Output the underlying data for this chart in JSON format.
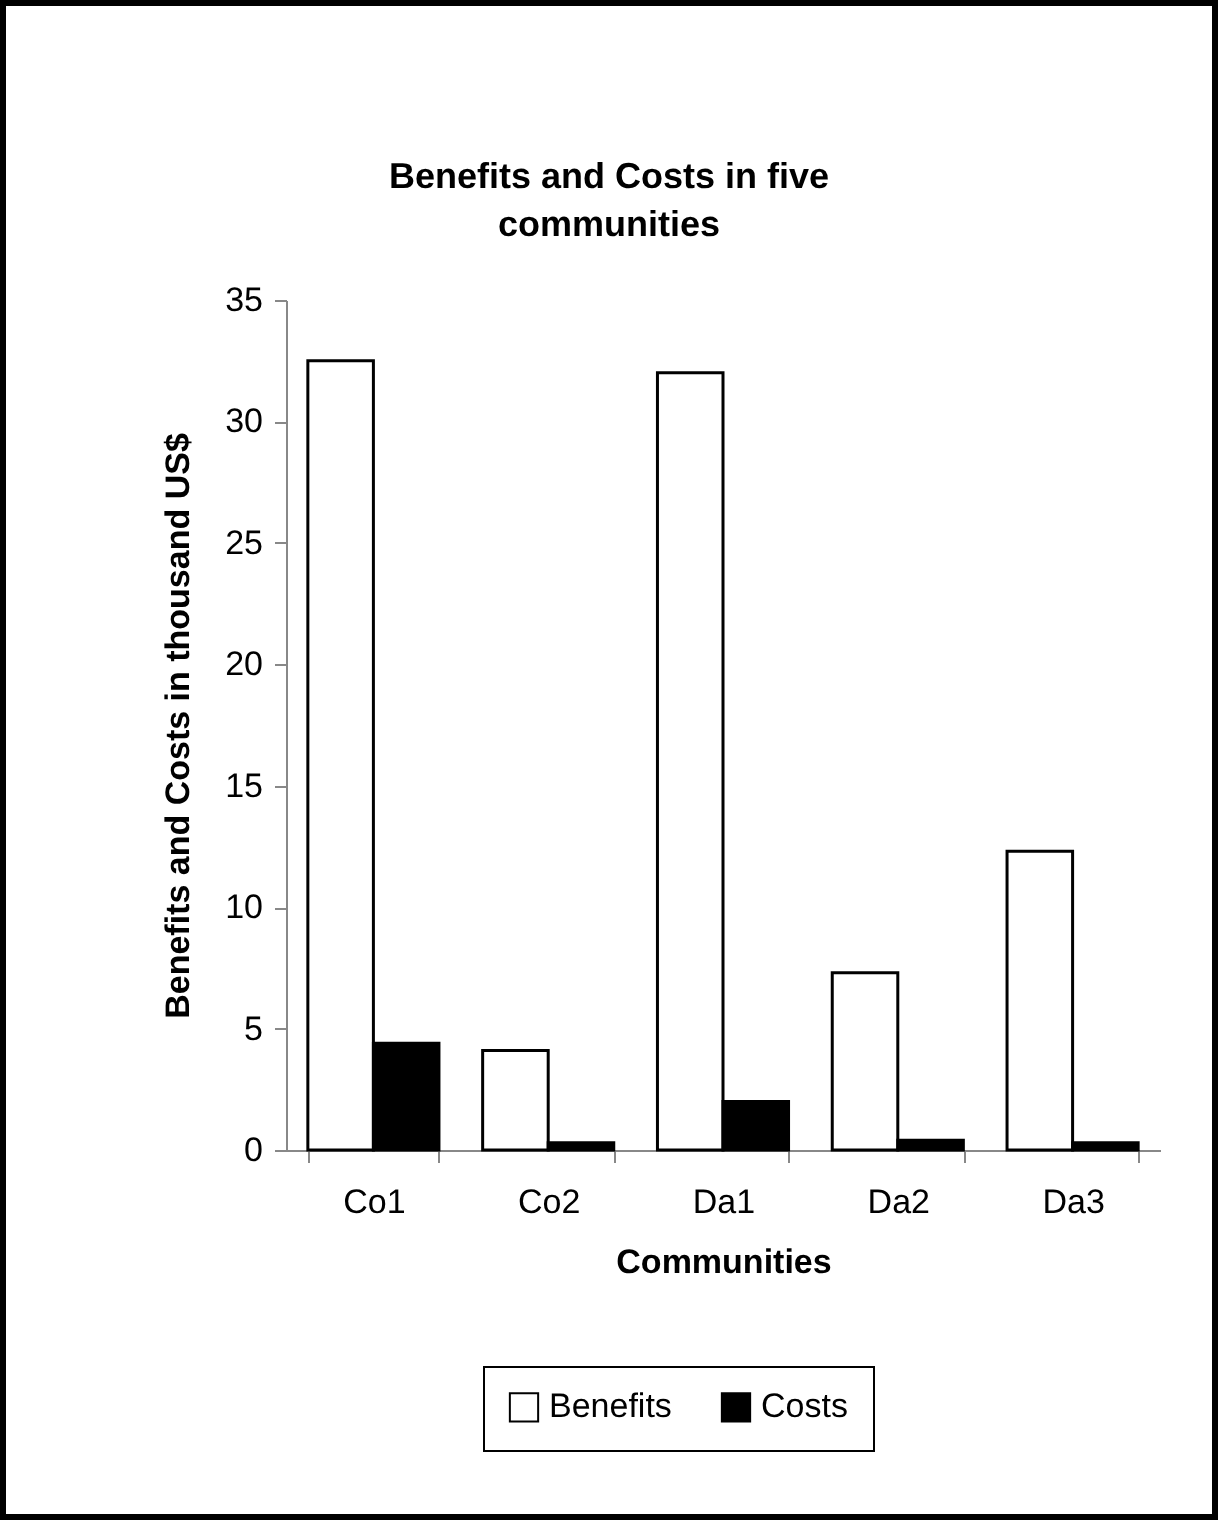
{
  "chart_data": {
    "type": "bar",
    "title": "Benefits and Costs in five communities",
    "xlabel": "Communities",
    "ylabel": "Benefits and Costs in thousand US$",
    "categories": [
      "Co1",
      "Co2",
      "Da1",
      "Da2",
      "Da3"
    ],
    "series": [
      {
        "name": "Benefits",
        "color": "#ffffff",
        "values": [
          32.5,
          4.1,
          32.0,
          7.3,
          12.3
        ]
      },
      {
        "name": "Costs",
        "color": "#000000",
        "values": [
          4.4,
          0.3,
          2.0,
          0.4,
          0.3
        ]
      }
    ],
    "ylim": [
      0,
      35
    ],
    "yticks": [
      0,
      5,
      10,
      15,
      20,
      25,
      30,
      35
    ],
    "grid": false,
    "legend": "bottom"
  }
}
